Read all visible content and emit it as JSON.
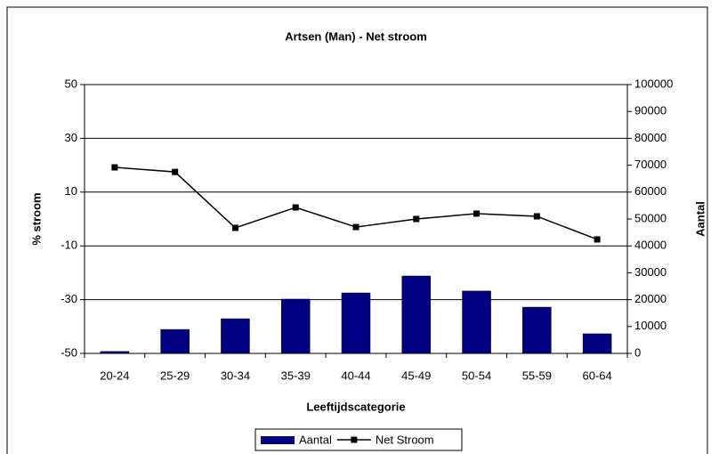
{
  "chart_data": {
    "type": "bar_line",
    "title": "Artsen (Man) - Net stroom",
    "x_label": "Leeftijdscategorie",
    "y_label": "% stroom",
    "y2_label": "Aantal",
    "categories": [
      "20-24",
      "25-29",
      "30-34",
      "35-39",
      "40-44",
      "45-49",
      "50-54",
      "55-59",
      "60-64"
    ],
    "series": [
      {
        "name": "Aantal",
        "type": "bar",
        "axis": "y2",
        "color": "#000080",
        "values": [
          700,
          8900,
          12900,
          20200,
          22500,
          28800,
          23200,
          17200,
          7300
        ]
      },
      {
        "name": "Net Stroom",
        "type": "line",
        "axis": "y",
        "color": "#000000",
        "values": [
          19.2,
          17.5,
          -3.3,
          4.3,
          -3.0,
          0,
          2.0,
          1.0,
          -7.6
        ]
      }
    ],
    "ylim": [
      -50,
      50
    ],
    "yticks": [
      -50,
      -30,
      -10,
      10,
      30,
      50
    ],
    "y2lim": [
      0,
      100000
    ],
    "y2ticks": [
      0,
      10000,
      20000,
      30000,
      40000,
      50000,
      60000,
      70000,
      80000,
      90000,
      100000
    ],
    "grid": true,
    "legend": "bottom"
  }
}
